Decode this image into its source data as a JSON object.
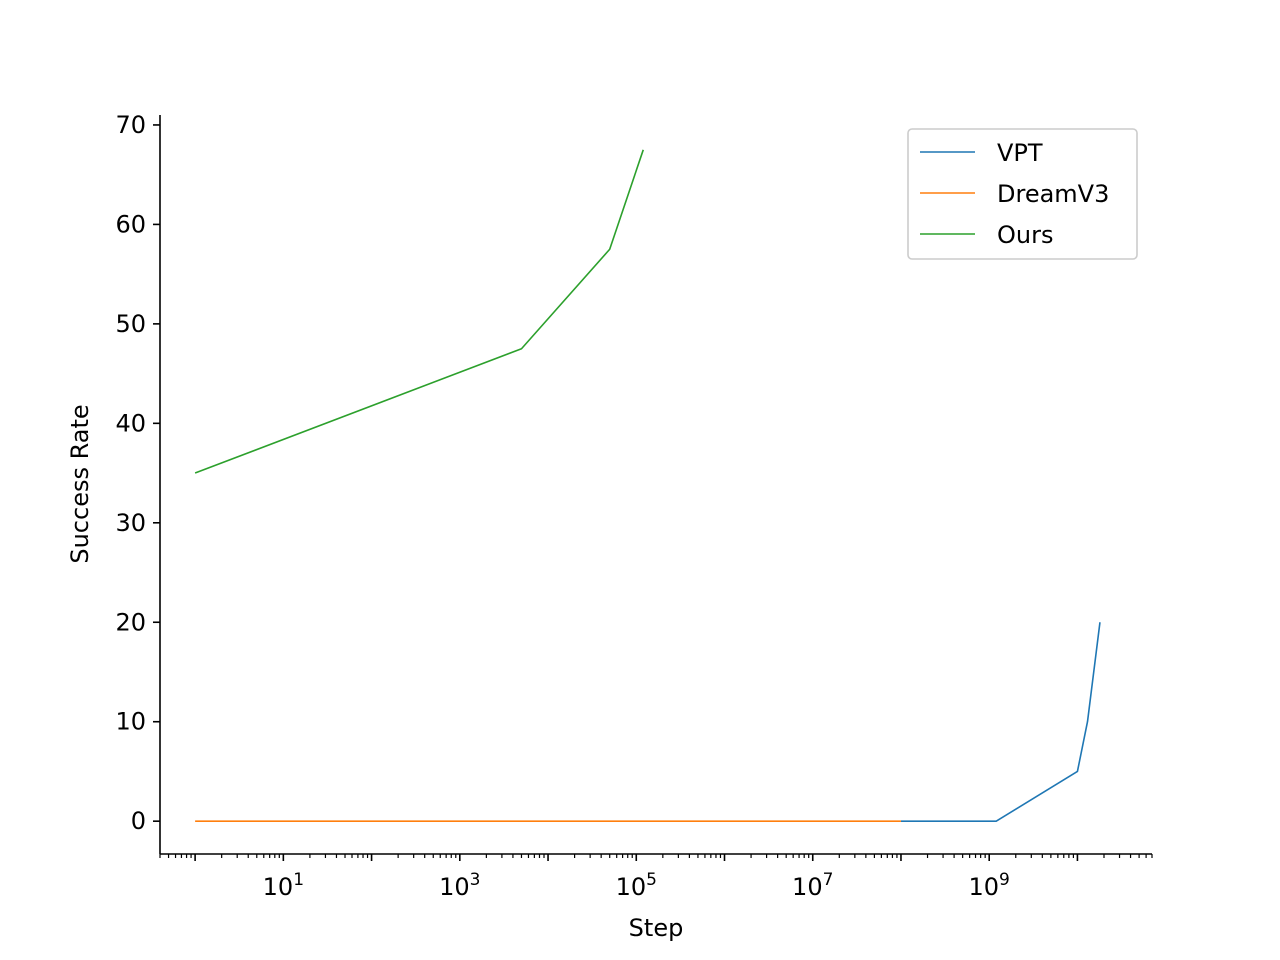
{
  "chart_data": {
    "type": "line",
    "title": "",
    "xlabel": "Step",
    "ylabel": "Success Rate",
    "x_scale": "log",
    "x_base": 10,
    "xlim": [
      0.4,
      70000000000.0
    ],
    "ylim": [
      -3.3,
      71
    ],
    "x_ticks": [
      {
        "value": 10,
        "base": "10",
        "exp": "1"
      },
      {
        "value": 1000,
        "base": "10",
        "exp": "3"
      },
      {
        "value": 100000,
        "base": "10",
        "exp": "5"
      },
      {
        "value": 10000000,
        "base": "10",
        "exp": "7"
      },
      {
        "value": 1000000000,
        "base": "10",
        "exp": "9"
      }
    ],
    "y_ticks": [
      "0",
      "10",
      "20",
      "30",
      "40",
      "50",
      "60",
      "70"
    ],
    "grid": false,
    "legend_position": "top-right",
    "series": [
      {
        "name": "VPT",
        "color": "#1f77b4",
        "x": [
          100000000,
          1200000000,
          10000000000,
          13000000000,
          18000000000
        ],
        "y": [
          0,
          0,
          5,
          10,
          20
        ]
      },
      {
        "name": "DreamV3",
        "color": "#ff7f0e",
        "x": [
          1,
          100000000
        ],
        "y": [
          0,
          0
        ]
      },
      {
        "name": "Ours",
        "color": "#2ca02c",
        "x": [
          1,
          5000,
          50000,
          120000
        ],
        "y": [
          35,
          47.5,
          57.5,
          67.5
        ]
      }
    ]
  }
}
